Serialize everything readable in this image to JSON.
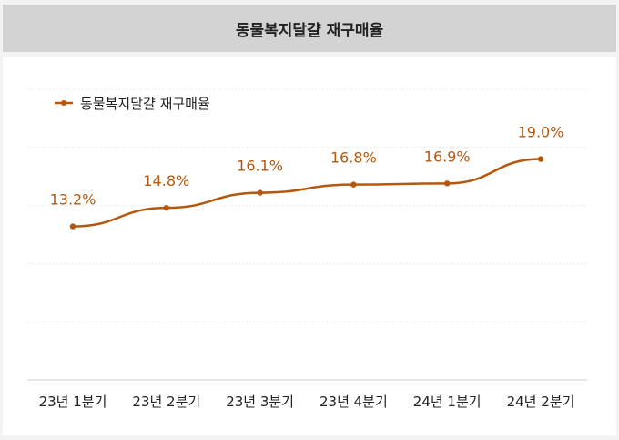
{
  "title": "동물복지달걀 재구매율",
  "chart_data": {
    "type": "line",
    "title": "동물복지달걀 재구매율",
    "categories": [
      "23년 1분기",
      "23년 2분기",
      "23년 3분기",
      "23년 4분기",
      "24년 1분기",
      "24년 2분기"
    ],
    "series": [
      {
        "name": "동물복지달걀 재구매율",
        "values": [
          13.2,
          14.8,
          16.1,
          16.8,
          16.9,
          19.0
        ],
        "labels": [
          "13.2%",
          "14.8%",
          "16.1%",
          "16.8%",
          "16.9%",
          "19.0%"
        ]
      }
    ],
    "ylim": [
      0,
      25
    ],
    "grid": true,
    "legend": "top-left",
    "color": "#b5580f"
  }
}
